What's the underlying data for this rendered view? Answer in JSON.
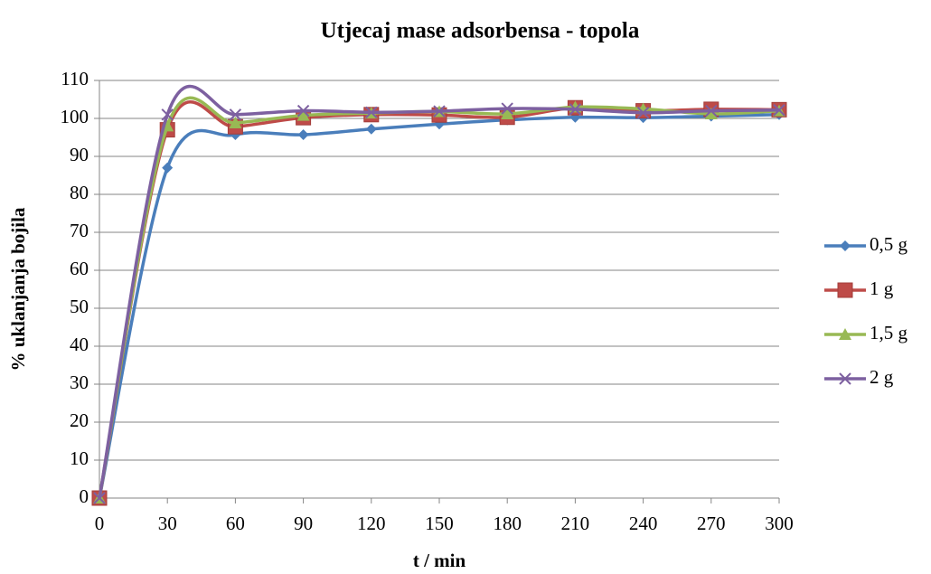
{
  "chart_data": {
    "type": "line",
    "title": "Utjecaj mase adsorbensa - topola",
    "x_label": "t / min",
    "y_label": "%  uklanjanja bojila",
    "x": [
      0,
      30,
      60,
      90,
      120,
      150,
      180,
      210,
      240,
      270,
      300
    ],
    "series": [
      {
        "name": "0,5 g",
        "color": "#4a7ebb",
        "marker": "diamond",
        "values": [
          0,
          87,
          95.7,
          95.7,
          97.2,
          98.5,
          99.6,
          100.3,
          100.2,
          100.6,
          101
        ]
      },
      {
        "name": "1 g",
        "color": "#be4b48",
        "marker": "square",
        "values": [
          0,
          97,
          97.8,
          100.2,
          101,
          100.9,
          100.3,
          102.8,
          102,
          102.4,
          102.3
        ]
      },
      {
        "name": "1,5 g",
        "color": "#98b954",
        "marker": "triangle",
        "values": [
          0,
          98,
          98.8,
          100.8,
          101.4,
          101.8,
          101.2,
          103,
          102.5,
          101.2,
          102
        ]
      },
      {
        "name": "2 g",
        "color": "#7d60a0",
        "marker": "x",
        "values": [
          0,
          101,
          101,
          102,
          101.6,
          101.9,
          102.6,
          102.4,
          101.5,
          102,
          102.2
        ]
      }
    ],
    "xlim": [
      0,
      300
    ],
    "xticks": [
      0,
      30,
      60,
      90,
      120,
      150,
      180,
      210,
      240,
      270,
      300
    ],
    "ylim": [
      0,
      110
    ],
    "yticks": [
      0,
      10,
      20,
      30,
      40,
      50,
      60,
      70,
      80,
      90,
      100,
      110
    ],
    "grid": true,
    "smooth": true,
    "legend": "right"
  }
}
